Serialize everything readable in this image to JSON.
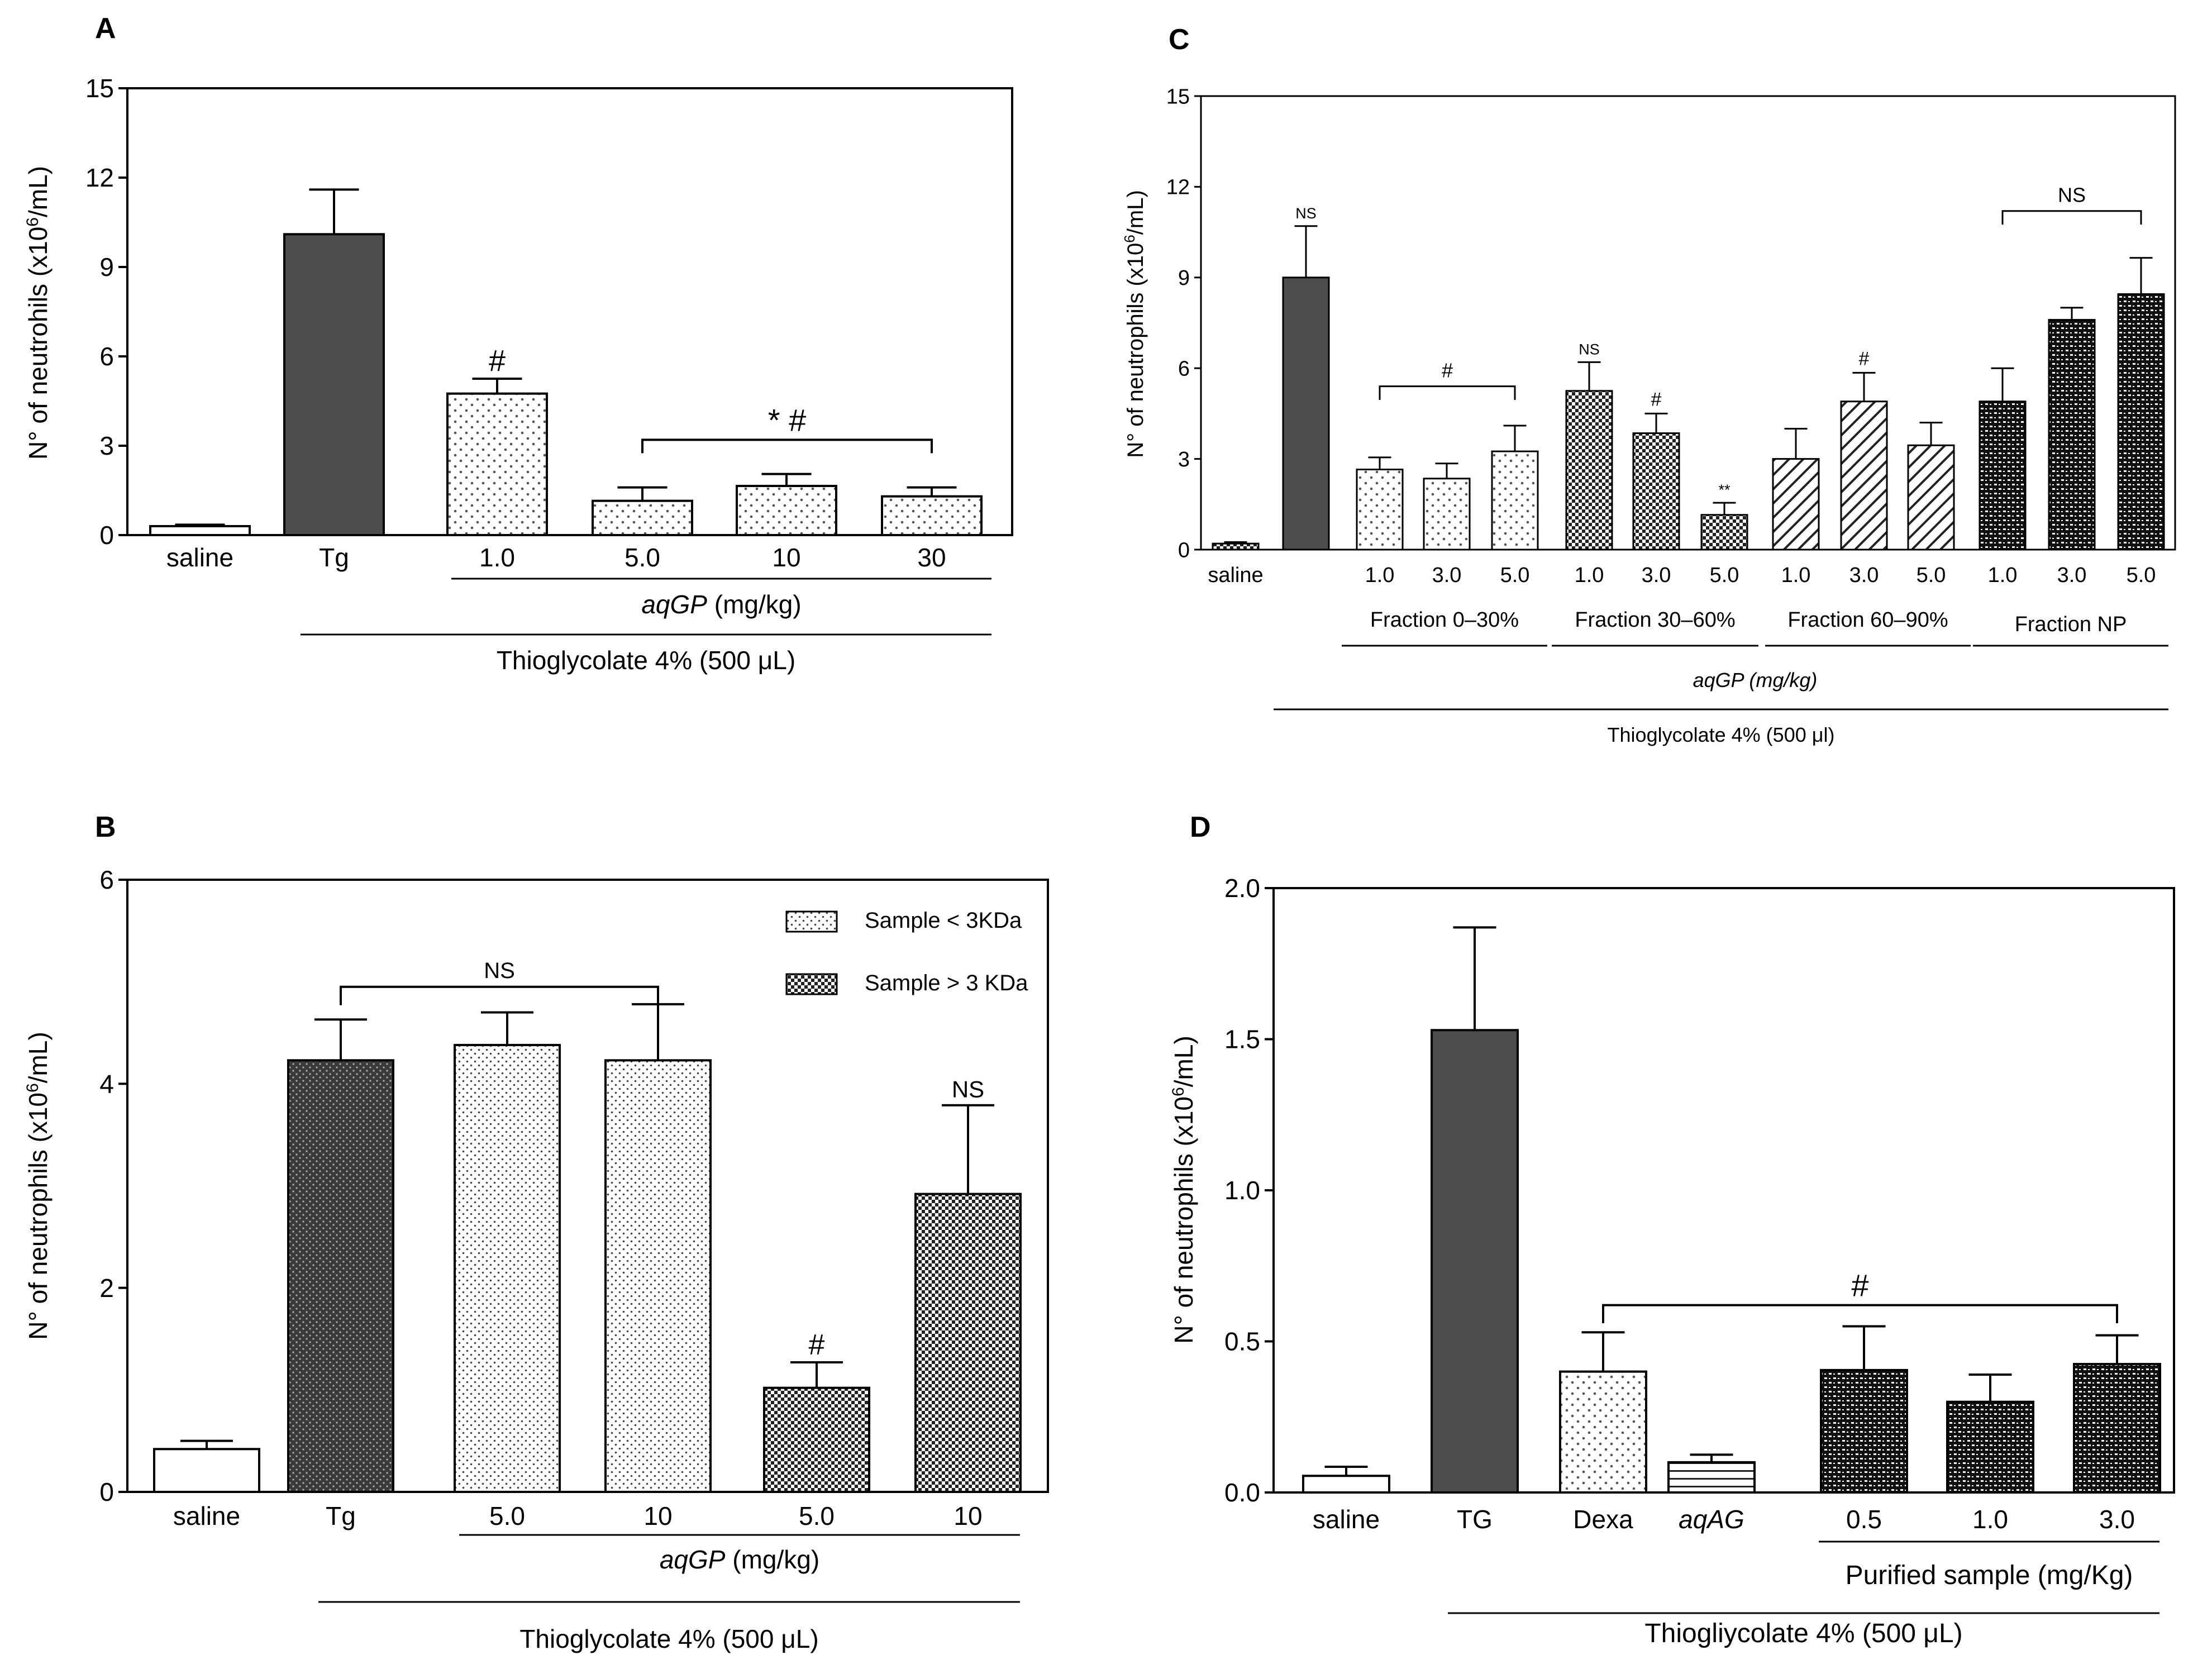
{
  "figure": {
    "background": "#ffffff",
    "dark_bar_color": "#4d4d4d"
  },
  "chart_data": [
    {
      "panel": "A",
      "type": "bar",
      "ylabel": "N° of neutrohils (x10",
      "ylabel_sup": "6",
      "ylabel_tail": "/mL)",
      "ylim": [
        0,
        15
      ],
      "yticks": [
        "0",
        "3",
        "6",
        "9",
        "12",
        "15"
      ],
      "categories": [
        "saline",
        "Tg",
        "1.0",
        "5.0",
        "10",
        "30"
      ],
      "values": [
        0.3,
        10.1,
        4.75,
        1.15,
        1.65,
        1.3
      ],
      "errors": [
        0.05,
        1.5,
        0.5,
        0.45,
        0.4,
        0.3
      ],
      "patterns": [
        "empty",
        "solid",
        "dots",
        "dots",
        "dots",
        "dots"
      ],
      "bar_annotations": [
        {
          "index": 2,
          "text": "#"
        }
      ],
      "brackets": [
        {
          "from": 3,
          "to": 5,
          "y": 3.2,
          "text": "* #"
        }
      ],
      "group_labels": [
        {
          "from": 2,
          "to": 5,
          "text_italic": "aqGP",
          "text": " (mg/kg)"
        },
        {
          "from": 1,
          "to": 5,
          "text": "Thioglycolate 4% (500 μL)",
          "text_italic": ""
        }
      ]
    },
    {
      "panel": "B",
      "type": "bar",
      "ylabel": "N° of neutrophils (x10",
      "ylabel_sup": "6",
      "ylabel_tail": "/mL)",
      "ylim": [
        0,
        6
      ],
      "yticks": [
        "0",
        "2",
        "4",
        "6"
      ],
      "categories": [
        "saline",
        "Tg",
        "5.0",
        "10",
        "5.0",
        "10"
      ],
      "values": [
        0.42,
        4.23,
        4.38,
        4.23,
        1.02,
        2.92
      ],
      "errors": [
        0.08,
        0.4,
        0.32,
        0.55,
        0.25,
        0.87
      ],
      "patterns": [
        "empty",
        "darkdots",
        "finedots",
        "finedots",
        "checker",
        "checker"
      ],
      "bar_annotations": [
        {
          "index": 4,
          "text": "#"
        },
        {
          "index": 5,
          "text": "NS"
        }
      ],
      "brackets": [
        {
          "from": 1,
          "to": 3,
          "y": 4.95,
          "text": "NS"
        }
      ],
      "legend": [
        {
          "label": "Sample < 3KDa",
          "pattern": "finedots"
        },
        {
          "label": "Sample > 3 KDa",
          "pattern": "checker"
        }
      ],
      "group_labels": [
        {
          "from": 2,
          "to": 5,
          "text_italic": "aqGP",
          "text": " (mg/kg)"
        },
        {
          "from": 1,
          "to": 5,
          "text": "Thioglycolate 4% (500 μL)",
          "text_italic": ""
        }
      ]
    },
    {
      "panel": "C",
      "type": "bar",
      "ylabel": "N° of neutrophils (x10",
      "ylabel_sup": "6",
      "ylabel_tail": "/mL)",
      "ylim": [
        0,
        15
      ],
      "yticks": [
        "0",
        "3",
        "6",
        "9",
        "12",
        "15"
      ],
      "categories": [
        "saline",
        "",
        "1.0",
        "3.0",
        "5.0",
        "1.0",
        "3.0",
        "5.0",
        "1.0",
        "3.0",
        "5.0",
        "1.0",
        "3.0",
        "5.0"
      ],
      "values": [
        0.2,
        9.0,
        2.65,
        2.35,
        3.25,
        5.25,
        3.85,
        1.15,
        3.0,
        4.9,
        3.45,
        4.9,
        7.6,
        8.45
      ],
      "errors": [
        0.05,
        1.7,
        0.4,
        0.5,
        0.85,
        0.95,
        0.65,
        0.4,
        1.0,
        0.95,
        0.75,
        1.1,
        0.4,
        1.2
      ],
      "patterns": [
        "checker",
        "solid",
        "dots",
        "dots",
        "dots",
        "checker",
        "checker",
        "checker",
        "hatch",
        "hatch",
        "hatch",
        "dashchecker",
        "dashchecker",
        "dashchecker"
      ],
      "bar_annotations": [
        {
          "index": 1,
          "text": "NS"
        },
        {
          "index": 5,
          "text": "NS"
        },
        {
          "index": 6,
          "text": "#"
        },
        {
          "index": 7,
          "text": "**"
        },
        {
          "index": 9,
          "text": "#"
        }
      ],
      "brackets": [
        {
          "from": 2,
          "to": 4,
          "y": 5.4,
          "text": "#"
        },
        {
          "from": 11,
          "to": 13,
          "y": 11.2,
          "text": "NS"
        }
      ],
      "group_labels": [
        {
          "from": 2,
          "to": 4,
          "text": "Fraction 0–30%",
          "text_italic": ""
        },
        {
          "from": 5,
          "to": 7,
          "text": "Fraction 30–60%",
          "text_italic": ""
        },
        {
          "from": 8,
          "to": 10,
          "text": "Fraction 60–90%",
          "text_italic": ""
        },
        {
          "from": 11,
          "to": 13,
          "text": "Fraction NP",
          "text_italic": ""
        },
        {
          "from": 2,
          "to": 13,
          "text_italic": "aqGP (mg/kg)",
          "text": ""
        },
        {
          "from": 1,
          "to": 13,
          "text": "Thioglycolate 4% (500 μl)",
          "text_italic": ""
        }
      ]
    },
    {
      "panel": "D",
      "type": "bar",
      "ylabel": "N° of neutrophils (x10",
      "ylabel_sup": "6",
      "ylabel_tail": "/mL)",
      "ylim": [
        0,
        2.0
      ],
      "yticks": [
        "0.0",
        "0.5",
        "1.0",
        "1.5",
        "2.0"
      ],
      "categories": [
        "saline",
        "TG",
        "Dexa",
        "aqAG",
        "0.5",
        "1.0",
        "3.0"
      ],
      "values": [
        0.055,
        1.53,
        0.4,
        0.1,
        0.405,
        0.3,
        0.425
      ],
      "errors": [
        0.03,
        0.34,
        0.13,
        0.025,
        0.145,
        0.09,
        0.095
      ],
      "patterns": [
        "empty",
        "solid",
        "dots",
        "hlines",
        "dashchecker",
        "dashchecker",
        "dashchecker"
      ],
      "bar_annotations": [],
      "brackets": [
        {
          "from": 2,
          "to": 6,
          "y": 0.62,
          "text": "#"
        }
      ],
      "group_labels": [
        {
          "from": 4,
          "to": 6,
          "text": "Purified sample (mg/Kg)",
          "text_italic": ""
        },
        {
          "from": 1,
          "to": 6,
          "text": "Thiogliycolate 4% (500 μL)",
          "text_italic": ""
        }
      ]
    }
  ]
}
